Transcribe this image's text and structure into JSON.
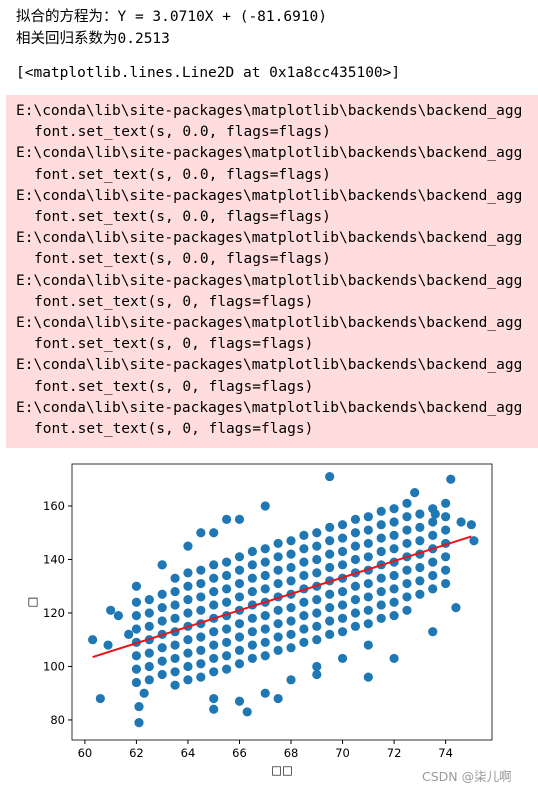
{
  "output": {
    "equation": "拟合的方程为：Y = 3.0710X + (-81.6910)",
    "correlation": "相关回归系数为0.2513",
    "repr": "[<matplotlib.lines.Line2D at 0x1a8cc435100>]"
  },
  "warnings": [
    {
      "path": "E:\\conda\\lib\\site-packages\\matplotlib\\backends\\backend_agg",
      "code": "font.set_text(s, 0.0, flags=flags)"
    },
    {
      "path": "E:\\conda\\lib\\site-packages\\matplotlib\\backends\\backend_agg",
      "code": "font.set_text(s, 0.0, flags=flags)"
    },
    {
      "path": "E:\\conda\\lib\\site-packages\\matplotlib\\backends\\backend_agg",
      "code": "font.set_text(s, 0.0, flags=flags)"
    },
    {
      "path": "E:\\conda\\lib\\site-packages\\matplotlib\\backends\\backend_agg",
      "code": "font.set_text(s, 0.0, flags=flags)"
    },
    {
      "path": "E:\\conda\\lib\\site-packages\\matplotlib\\backends\\backend_agg",
      "code": "font.set_text(s, 0, flags=flags)"
    },
    {
      "path": "E:\\conda\\lib\\site-packages\\matplotlib\\backends\\backend_agg",
      "code": "font.set_text(s, 0, flags=flags)"
    },
    {
      "path": "E:\\conda\\lib\\site-packages\\matplotlib\\backends\\backend_agg",
      "code": "font.set_text(s, 0, flags=flags)"
    },
    {
      "path": "E:\\conda\\lib\\site-packages\\matplotlib\\backends\\backend_agg",
      "code": "font.set_text(s, 0, flags=flags)"
    }
  ],
  "watermark": "CSDN @柒儿啊",
  "chart_data": {
    "type": "scatter",
    "xlabel": "□□",
    "ylabel": "□",
    "xlim": [
      59.5,
      75.8
    ],
    "ylim": [
      72.5,
      175.7
    ],
    "xticks": [
      60,
      62,
      64,
      66,
      68,
      70,
      72,
      74
    ],
    "yticks": [
      80,
      100,
      120,
      140,
      160
    ],
    "points": {
      "color": "#1f77b4",
      "x": [
        62,
        62,
        62,
        62,
        62,
        62,
        62,
        62.5,
        62.5,
        62.5,
        62.5,
        62.5,
        62.5,
        62.5,
        63,
        63,
        63,
        63,
        63,
        63,
        63,
        63.5,
        63.5,
        63.5,
        63.5,
        63.5,
        63.5,
        63.5,
        63.5,
        63.5,
        64,
        64,
        64,
        64,
        64,
        64,
        64,
        64,
        64,
        64.5,
        64.5,
        64.5,
        64.5,
        64.5,
        64.5,
        64.5,
        64.5,
        64.5,
        65,
        65,
        65,
        65,
        65,
        65,
        65,
        65,
        65,
        65.5,
        65.5,
        65.5,
        65.5,
        65.5,
        65.5,
        65.5,
        65.5,
        65.5,
        66,
        66,
        66,
        66,
        66,
        66,
        66,
        66,
        66,
        66.5,
        66.5,
        66.5,
        66.5,
        66.5,
        66.5,
        66.5,
        66.5,
        66.5,
        67,
        67,
        67,
        67,
        67,
        67,
        67,
        67,
        67,
        67.5,
        67.5,
        67.5,
        67.5,
        67.5,
        67.5,
        67.5,
        67.5,
        67.5,
        68,
        68,
        68,
        68,
        68,
        68,
        68,
        68,
        68,
        68.5,
        68.5,
        68.5,
        68.5,
        68.5,
        68.5,
        68.5,
        68.5,
        68.5,
        69,
        69,
        69,
        69,
        69,
        69,
        69,
        69,
        69,
        69.5,
        69.5,
        69.5,
        69.5,
        69.5,
        69.5,
        69.5,
        69.5,
        69.5,
        70,
        70,
        70,
        70,
        70,
        70,
        70,
        70,
        70,
        70.5,
        70.5,
        70.5,
        70.5,
        70.5,
        70.5,
        70.5,
        70.5,
        70.5,
        71,
        71,
        71,
        71,
        71,
        71,
        71,
        71,
        71,
        71.5,
        71.5,
        71.5,
        71.5,
        71.5,
        71.5,
        71.5,
        71.5,
        71.5,
        72,
        72,
        72,
        72,
        72,
        72,
        72,
        72,
        72,
        72.5,
        72.5,
        72.5,
        72.5,
        72.5,
        72.5,
        72.5,
        72.5,
        72.5,
        73,
        73,
        73,
        73,
        73,
        73,
        73,
        73.5,
        73.5,
        73.5,
        73.5,
        73.5,
        73.5,
        73.5,
        74,
        74,
        74,
        74,
        74,
        74,
        74,
        63,
        64,
        65,
        66,
        65,
        66,
        67,
        68,
        69,
        70,
        71,
        60.3,
        60.6,
        61,
        61.3,
        60.9,
        62.1,
        62.1,
        61.7,
        62.3,
        73.6,
        74.2,
        74.6,
        74.4,
        75.1,
        75,
        72.8,
        69.5,
        64.5,
        65.5,
        67,
        65,
        66.3,
        67.5,
        69,
        71,
        72,
        73.5,
        63,
        62
      ],
      "y": [
        94,
        99,
        104,
        109,
        114,
        119,
        124,
        95,
        100,
        105,
        110,
        115,
        120,
        125,
        97,
        102,
        107,
        112,
        117,
        122,
        127,
        93,
        98,
        103,
        108,
        113,
        118,
        123,
        128,
        133,
        95,
        100,
        105,
        110,
        115,
        120,
        125,
        130,
        135,
        96,
        101,
        106,
        111,
        116,
        121,
        126,
        131,
        136,
        98,
        103,
        108,
        113,
        118,
        123,
        128,
        133,
        138,
        99,
        104,
        109,
        114,
        119,
        124,
        129,
        134,
        139,
        101,
        106,
        111,
        116,
        121,
        126,
        131,
        136,
        141,
        103,
        108,
        113,
        118,
        123,
        128,
        133,
        138,
        143,
        104,
        109,
        114,
        119,
        124,
        129,
        134,
        139,
        144,
        106,
        111,
        116,
        121,
        126,
        131,
        136,
        141,
        146,
        107,
        112,
        117,
        122,
        127,
        132,
        137,
        142,
        147,
        109,
        114,
        119,
        124,
        129,
        134,
        139,
        144,
        149,
        110,
        115,
        120,
        125,
        130,
        135,
        140,
        145,
        150,
        112,
        117,
        122,
        127,
        132,
        137,
        142,
        147,
        152,
        113,
        118,
        123,
        128,
        133,
        138,
        143,
        148,
        153,
        115,
        120,
        125,
        130,
        135,
        140,
        145,
        150,
        155,
        116,
        121,
        126,
        131,
        136,
        141,
        146,
        151,
        156,
        118,
        123,
        128,
        133,
        138,
        143,
        148,
        153,
        158,
        119,
        124,
        129,
        134,
        139,
        144,
        149,
        154,
        159,
        121,
        126,
        131,
        136,
        141,
        146,
        151,
        156,
        161,
        127,
        132,
        137,
        142,
        147,
        152,
        157,
        129,
        134,
        139,
        144,
        149,
        154,
        159,
        131,
        136,
        141,
        146,
        151,
        156,
        161,
        138,
        145,
        150,
        155,
        88,
        87,
        90,
        95,
        100,
        103,
        108,
        110,
        88,
        121,
        119,
        108,
        85,
        79,
        112,
        90,
        157,
        170,
        154,
        122,
        147,
        153,
        165,
        171,
        150,
        155,
        160,
        84,
        83,
        88,
        97,
        96,
        103,
        113,
        138,
        130
      ]
    },
    "line": {
      "color": "#e8141a",
      "x": [
        60.3,
        75
      ],
      "y": [
        103.5,
        148.6
      ]
    }
  }
}
